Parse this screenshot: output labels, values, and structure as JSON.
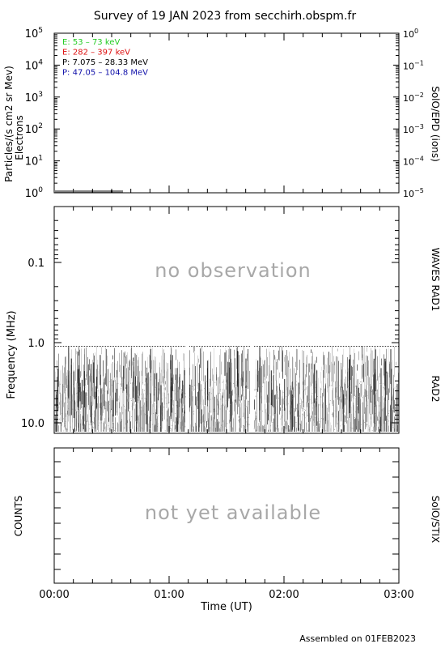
{
  "title": "Survey of 19 JAN 2023 from secchirh.obspm.fr",
  "footer": "Assembled on 01FEB2023",
  "panels": {
    "particles": {
      "ylabel_left": "Particles/(s cm2 sr Mev)",
      "ylabel_left_sub": "Electrons",
      "ylabel_right": "SolO/EPD (ions)",
      "legend": [
        {
          "text": "E: 53 – 73 keV",
          "color": "#22cc22"
        },
        {
          "text": "E: 282 – 397 keV",
          "color": "#dd1111"
        },
        {
          "text": "P: 7.075 – 28.33 MeV",
          "color": "#000000"
        },
        {
          "text": "P: 47.05 – 104.8 MeV",
          "color": "#1111aa"
        }
      ],
      "left_ticks": [
        {
          "base": "10",
          "exp": "5",
          "log": 5
        },
        {
          "base": "10",
          "exp": "4",
          "log": 4
        },
        {
          "base": "10",
          "exp": "3",
          "log": 3
        },
        {
          "base": "10",
          "exp": "2",
          "log": 2
        },
        {
          "base": "10",
          "exp": "1",
          "log": 1
        },
        {
          "base": "10",
          "exp": "0",
          "log": 0
        }
      ],
      "right_ticks": [
        {
          "base": "10",
          "exp": "0",
          "log": 0
        },
        {
          "base": "10",
          "exp": "−1",
          "log": -1
        },
        {
          "base": "10",
          "exp": "−2",
          "log": -2
        },
        {
          "base": "10",
          "exp": "−3",
          "log": -3
        },
        {
          "base": "10",
          "exp": "−4",
          "log": -4
        },
        {
          "base": "10",
          "exp": "−5",
          "log": -5
        }
      ]
    },
    "waves": {
      "ylabel": "Frequency (MHz)",
      "label_rad1": "WAVES RAD1",
      "label_rad2": "RAD2",
      "no_obs_text": "no observation",
      "ticks": [
        {
          "label": "0.1",
          "value": 0.1
        },
        {
          "label": "1.0",
          "value": 1.0
        },
        {
          "label": "10.0",
          "value": 10.0
        }
      ]
    },
    "stix": {
      "ylabel": "COUNTS",
      "ylabel_right": "SolO/STIX",
      "not_available_text": "not yet available"
    }
  },
  "x_axis": {
    "label": "Time (UT)",
    "ticks": [
      "00:00",
      "01:00",
      "02:00",
      "03:00"
    ]
  },
  "chart_data": [
    {
      "type": "line",
      "xlabel": "Time (UT)",
      "ylabel": "Particles/(s cm2 sr Mev)",
      "yscale": "log",
      "ylim": [
        1,
        100000
      ],
      "y2label": "SolO/EPD (ions)",
      "y2lim": [
        1e-05,
        1
      ],
      "series": [
        {
          "name": "E: 53 – 73 keV",
          "color": "#22cc22"
        },
        {
          "name": "E: 282 – 397 keV",
          "color": "#dd1111"
        },
        {
          "name": "P: 7.075 – 28.33 MeV",
          "color": "#000000"
        },
        {
          "name": "P: 47.05 – 104.8 MeV",
          "color": "#1111aa"
        }
      ]
    },
    {
      "type": "heatmap",
      "ylabel": "Frequency (MHz)",
      "yscale": "log",
      "ylim": [
        0.02,
        14
      ],
      "xlim": [
        "00:00",
        "03:00"
      ],
      "data_gaps": [
        [
          "01:09",
          "01:10"
        ],
        [
          "01:43",
          "01:45"
        ]
      ],
      "rad2_range_mhz": [
        1.0,
        14.0
      ]
    },
    {
      "type": "line",
      "ylabel": "COUNTS",
      "xlim": [
        "00:00",
        "03:00"
      ]
    }
  ]
}
